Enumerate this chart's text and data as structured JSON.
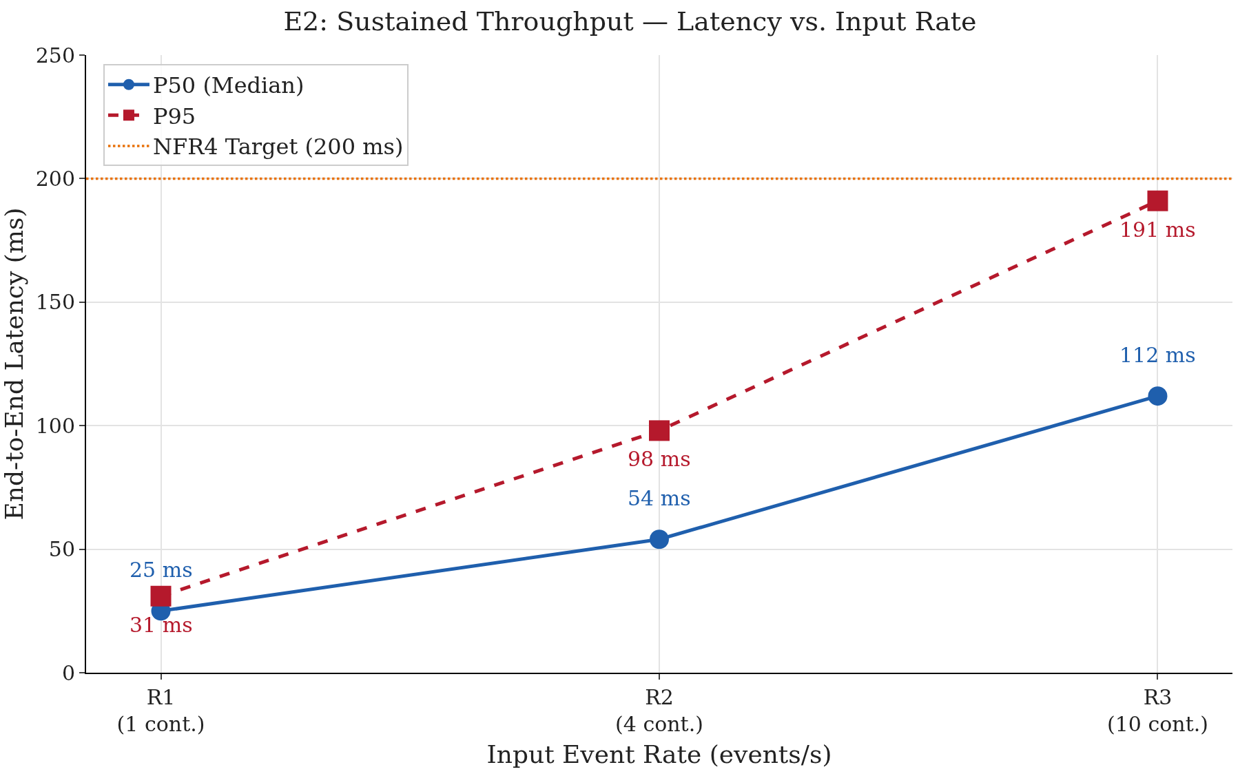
{
  "chart_data": {
    "type": "line",
    "title": "E2: Sustained Throughput — Latency vs. Input Rate",
    "xlabel": "Input Event Rate (events/s)",
    "ylabel": "End-to-End Latency (ms)",
    "categories": [
      "R1\n(1 cont.)",
      "R2\n(4 cont.)",
      "R3\n(10 cont.)"
    ],
    "series": [
      {
        "name": "P50 (Median)",
        "color": "#1f5fad",
        "values": [
          25,
          54,
          112
        ],
        "marker": "circle",
        "line_style": "solid",
        "value_labels": [
          "25 ms",
          "54 ms",
          "112 ms"
        ]
      },
      {
        "name": "P95",
        "color": "#b5192c",
        "values": [
          31,
          98,
          191
        ],
        "marker": "square",
        "line_style": "dashed",
        "value_labels": [
          "31 ms",
          "98 ms",
          "191 ms"
        ]
      }
    ],
    "ref_lines": [
      {
        "axis": "y",
        "value": 200,
        "label": "NFR4 Target (200 ms)",
        "color": "#e8710a",
        "line_style": "dotted"
      }
    ],
    "ylim": [
      0,
      250
    ],
    "yticks": [
      0,
      50,
      100,
      150,
      200,
      250
    ],
    "grid": true,
    "legend": "top left"
  }
}
